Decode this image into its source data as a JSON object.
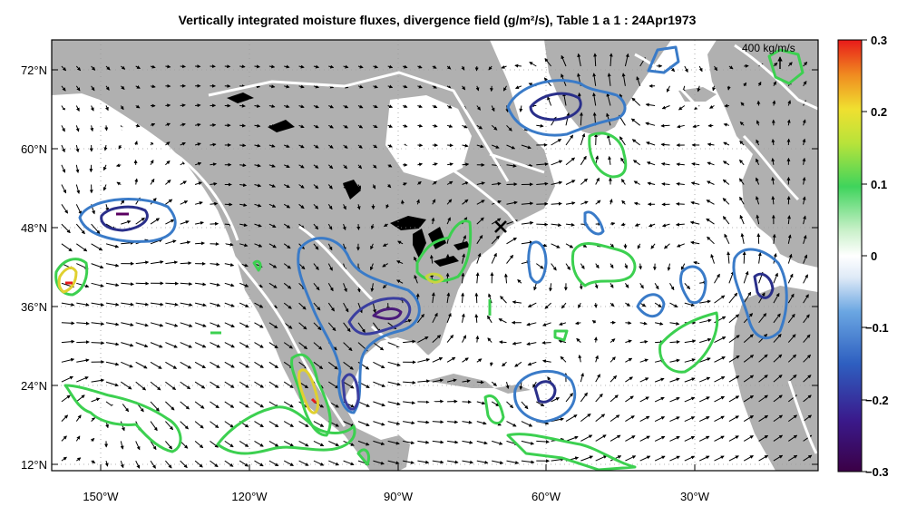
{
  "chart_data": {
    "type": "heatmap",
    "title": "Vertically integrated moisture fluxes, divergence field (g/m²/s), Table 1 a 1 : 24Apr1973",
    "x_range": [
      -160,
      -5
    ],
    "y_range": [
      10.5,
      76
    ],
    "x_ticks": [
      {
        "value": -150,
        "label": "150°W"
      },
      {
        "value": -120,
        "label": "120°W"
      },
      {
        "value": -90,
        "label": "90°W"
      },
      {
        "value": -60,
        "label": "60°W"
      },
      {
        "value": -30,
        "label": "30°W"
      }
    ],
    "y_ticks": [
      {
        "value": 12,
        "label": "12°N"
      },
      {
        "value": 24,
        "label": "24°N"
      },
      {
        "value": 36,
        "label": "36°N"
      },
      {
        "value": 48,
        "label": "48°N"
      },
      {
        "value": 60,
        "label": "60°N"
      },
      {
        "value": 72,
        "label": "72°N"
      }
    ],
    "colorbar": {
      "min": -0.3,
      "max": 0.3,
      "ticks": [
        "0.3",
        "0.2",
        "0.1",
        "0",
        "−0.1",
        "−0.2",
        "−0.3"
      ],
      "tick_values": [
        0.3,
        0.2,
        0.1,
        0,
        -0.1,
        -0.2,
        -0.3
      ]
    },
    "reference_vector": {
      "magnitude": 400,
      "label": "400  kg/m/s"
    },
    "marker": {
      "symbol": "×",
      "lon": -71,
      "lat": 48
    },
    "contour_levels": [
      -0.3,
      -0.2,
      -0.15,
      -0.1,
      0.1,
      0.2,
      0.25
    ],
    "grid": true
  }
}
